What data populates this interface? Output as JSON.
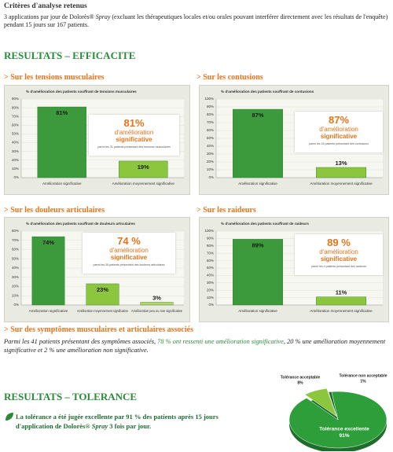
{
  "header": {
    "title": "Critères d'analyse retenus",
    "text": [
      "3 applications par jour de Dolorès® ",
      "Spray",
      " (excluant les thérapeutiques locales et/ou orales pouvant interférer directement avec les résultats de l'enquête) pendant 15 jours sur 167 patients."
    ]
  },
  "efficacy": {
    "title": "RESULTATS – EFFICACITE",
    "sections": [
      "> Sur les tensions musculaires",
      "> Sur les contusions",
      "> Sur les douleurs articulaires",
      "> Sur les raideurs"
    ],
    "callouts": [
      {
        "value": "81%",
        "line1": "d'amélioration",
        "line2": "significative",
        "note": "parmi les 31 patients présentant des tensions musculaires"
      },
      {
        "value": "87%",
        "line1": "d'amélioration",
        "line2": "significative",
        "note": "parmi les 15 patients présentant des contusions"
      },
      {
        "value": "74 %",
        "line1": "d'amélioration",
        "line2": "significative",
        "note": "parmi les 35 patients présentant des douleurs articulaires"
      },
      {
        "value": "89 %",
        "line1": "d'amélioration",
        "line2": "significative",
        "note": "parmi les 4 patients présentant des raideurs"
      }
    ]
  },
  "associated": {
    "title": "> Sur des symptômes musculaires et articulaires associés",
    "text": [
      "Parmi les 41 patients présentant des symptômes associés, ",
      "78 % ont ressenti une amélioration significative",
      ", 20 % une amélioration moyennement significative et 2 % une amélioration non significative."
    ]
  },
  "tolerance": {
    "title": "RESULTATS – TOLERANCE",
    "text": [
      "La tolérance a été jugée excellente par 91 % des patients après 15 jours d'application de Dolorès® ",
      "Spray",
      " 3 fois par jour."
    ]
  },
  "chart_data": [
    {
      "type": "bar",
      "title": "% d'amélioration des patients souffrant de tensions musculaires",
      "categories": [
        "Amélioration significative",
        "Amélioration moyennement significative"
      ],
      "values": [
        81,
        19
      ],
      "value_labels": [
        "81%",
        "19%"
      ],
      "colors": [
        "#3d9a3c",
        "#8cc63f"
      ],
      "ylim": [
        0,
        90
      ],
      "yticks": [
        {
          "value": 0,
          "label": "0%"
        },
        {
          "value": 10,
          "label": "10%"
        },
        {
          "value": 20,
          "label": "20%"
        },
        {
          "value": 30,
          "label": "30%"
        },
        {
          "value": 40,
          "label": "40%"
        },
        {
          "value": 50,
          "label": "50%"
        },
        {
          "value": 60,
          "label": "60%"
        },
        {
          "value": 70,
          "label": "70%"
        },
        {
          "value": 80,
          "label": "80%"
        },
        {
          "value": 90,
          "label": "90%"
        }
      ]
    },
    {
      "type": "bar",
      "title": "% d'amélioration des patients souffrant de contusions",
      "categories": [
        "Amélioration significative",
        "Amélioration moyennement significative"
      ],
      "values": [
        87,
        13
      ],
      "value_labels": [
        "87%",
        "13%"
      ],
      "colors": [
        "#3d9a3c",
        "#8cc63f"
      ],
      "ylim": [
        0,
        100
      ],
      "yticks": [
        {
          "value": 0,
          "label": "0%"
        },
        {
          "value": 10,
          "label": "10%"
        },
        {
          "value": 20,
          "label": "20%"
        },
        {
          "value": 30,
          "label": "30%"
        },
        {
          "value": 40,
          "label": "40%"
        },
        {
          "value": 50,
          "label": "50%"
        },
        {
          "value": 60,
          "label": "60%"
        },
        {
          "value": 70,
          "label": "70%"
        },
        {
          "value": 80,
          "label": "80%"
        },
        {
          "value": 90,
          "label": "90%"
        },
        {
          "value": 100,
          "label": "100%"
        }
      ]
    },
    {
      "type": "bar",
      "title": "% d'amélioration des patients souffrant de douleurs articulaires",
      "categories": [
        "Amélioration significative",
        "Amélioration moyennement significative",
        "Amélioration peu ou non significative"
      ],
      "values": [
        74,
        23,
        3
      ],
      "value_labels": [
        "74%",
        "23%",
        "3%"
      ],
      "colors": [
        "#3d9a3c",
        "#8cc63f",
        "#b5d56a"
      ],
      "ylim": [
        0,
        80
      ],
      "yticks": [
        {
          "value": 0,
          "label": "0%"
        },
        {
          "value": 10,
          "label": "10%"
        },
        {
          "value": 20,
          "label": "20%"
        },
        {
          "value": 30,
          "label": "30%"
        },
        {
          "value": 40,
          "label": "40%"
        },
        {
          "value": 50,
          "label": "50%"
        },
        {
          "value": 60,
          "label": "60%"
        },
        {
          "value": 70,
          "label": "70%"
        },
        {
          "value": 80,
          "label": "80%"
        }
      ]
    },
    {
      "type": "bar",
      "title": "% d'amélioration des patients souffrant de raideurs",
      "categories": [
        "Amélioration significative",
        "Amélioration moyennement significative"
      ],
      "values": [
        89,
        11
      ],
      "value_labels": [
        "89%",
        "11%"
      ],
      "colors": [
        "#3d9a3c",
        "#8cc63f"
      ],
      "ylim": [
        0,
        100
      ],
      "yticks": [
        {
          "value": 0,
          "label": "0%"
        },
        {
          "value": 10,
          "label": "10%"
        },
        {
          "value": 20,
          "label": "20%"
        },
        {
          "value": 30,
          "label": "30%"
        },
        {
          "value": 40,
          "label": "40%"
        },
        {
          "value": 50,
          "label": "50%"
        },
        {
          "value": 60,
          "label": "60%"
        },
        {
          "value": 70,
          "label": "70%"
        },
        {
          "value": 80,
          "label": "80%"
        },
        {
          "value": 90,
          "label": "90%"
        },
        {
          "value": 100,
          "label": "100%"
        }
      ]
    },
    {
      "type": "pie",
      "categories": [
        "Tolérance excellente",
        "Tolérance acceptable",
        "Tolérance non acceptable"
      ],
      "values": [
        91,
        8,
        1
      ],
      "value_labels": [
        "91%",
        "8%",
        "1%"
      ],
      "colors": [
        "#2e9e3a",
        "#8cc63f",
        "#1e6b2a"
      ]
    }
  ]
}
